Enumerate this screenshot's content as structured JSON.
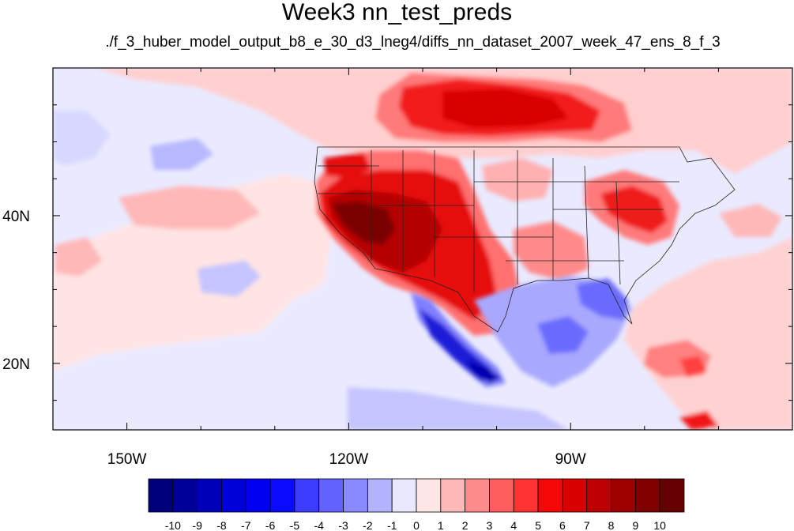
{
  "title": "Week3 nn_test_preds",
  "subtitle": "./f_3_huber_model_output_b8_e_30_d3_lneg4/diffs_nn_dataset_2007_week_47_ens_8_f_3",
  "map": {
    "projection": "cylindrical-equidistant",
    "lon_range": [
      -160,
      -60
    ],
    "lat_range": [
      11,
      60
    ],
    "lon_ticks": [
      "150W",
      "120W",
      "90W"
    ],
    "lat_ticks": [
      "40N",
      "20N"
    ],
    "colors": {
      "ocean_background": "#eaeaff",
      "western_us_core": "#7a0000",
      "canada_high": "#f01818",
      "mexico_coast_negative": "#1010d8",
      "gulf_negative": "#7f7fff",
      "atlantic_positive": "#ffcdd0"
    }
  },
  "colorbar": {
    "labels": [
      "-10",
      "-9",
      "-8",
      "-7",
      "-6",
      "-5",
      "-4",
      "-3",
      "-2",
      "-1",
      "0",
      "1",
      "2",
      "3",
      "4",
      "5",
      "6",
      "7",
      "8",
      "9",
      "10"
    ],
    "colors": [
      "#00007a",
      "#000099",
      "#0000b8",
      "#0000d8",
      "#0000f0",
      "#0a0aff",
      "#3c3cff",
      "#6262ff",
      "#8a8aff",
      "#b2b2ff",
      "#e8e8ff",
      "#ffe6e6",
      "#ffb8b8",
      "#ff8c8c",
      "#ff5e5e",
      "#ff3232",
      "#f50808",
      "#d80000",
      "#bc0000",
      "#9e0000",
      "#800000",
      "#660000"
    ]
  }
}
